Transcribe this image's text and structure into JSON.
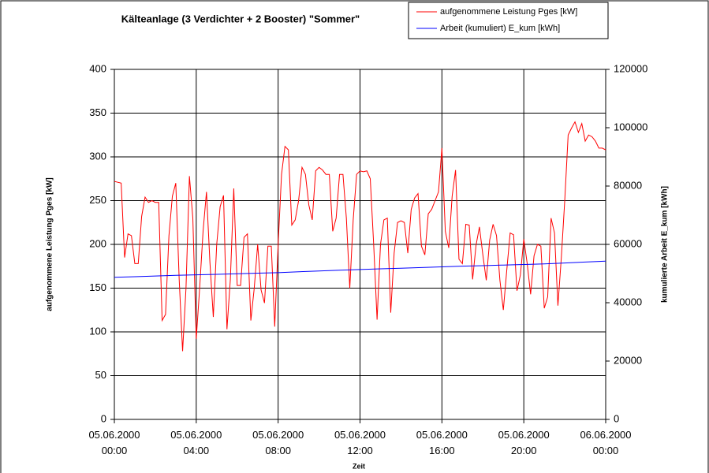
{
  "chart_data": {
    "type": "line",
    "title": "Kälteanlage (3 Verdichter + 2 Booster) \"Sommer\"",
    "xlabel": "Zeit",
    "ylabel": "aufgenommene Leistung Pges [kW]",
    "y2label": "kumulierte Arbeit E_kum [kWh]",
    "legend": "top right",
    "grid": true,
    "xlim": [
      "05.06.2000 00:00",
      "06.06.2000 00:00"
    ],
    "xticks": [
      "05.06.2000 00:00",
      "05.06.2000 04:00",
      "05.06.2000 08:00",
      "05.06.2000 12:00",
      "05.06.2000 16:00",
      "05.06.2000 20:00",
      "06.06.2000 00:00"
    ],
    "ylim": [
      0,
      400
    ],
    "yticks": [
      0,
      50,
      100,
      150,
      200,
      250,
      300,
      350,
      400
    ],
    "y2lim": [
      0,
      120000
    ],
    "y2ticks": [
      0,
      20000,
      40000,
      60000,
      80000,
      100000,
      120000
    ],
    "series": [
      {
        "name": "aufgenommene Leistung Pges [kW]",
        "color": "#ff0000",
        "x": [
          "05.06.2000 00:00",
          "05.06.2000 00:10",
          "05.06.2000 00:20",
          "05.06.2000 00:30",
          "05.06.2000 00:40",
          "05.06.2000 00:50",
          "05.06.2000 01:00",
          "05.06.2000 01:10",
          "05.06.2000 01:20",
          "05.06.2000 01:30",
          "05.06.2000 01:40",
          "05.06.2000 01:50",
          "05.06.2000 02:00",
          "05.06.2000 02:10",
          "05.06.2000 02:20",
          "05.06.2000 02:30",
          "05.06.2000 02:40",
          "05.06.2000 02:50",
          "05.06.2000 03:00",
          "05.06.2000 03:10",
          "05.06.2000 03:20",
          "05.06.2000 03:30",
          "05.06.2000 03:40",
          "05.06.2000 03:50",
          "05.06.2000 04:00",
          "05.06.2000 04:10",
          "05.06.2000 04:20",
          "05.06.2000 04:30",
          "05.06.2000 04:40",
          "05.06.2000 04:50",
          "05.06.2000 05:00",
          "05.06.2000 05:10",
          "05.06.2000 05:20",
          "05.06.2000 05:30",
          "05.06.2000 05:40",
          "05.06.2000 05:50",
          "05.06.2000 06:00",
          "05.06.2000 06:10",
          "05.06.2000 06:20",
          "05.06.2000 06:30",
          "05.06.2000 06:40",
          "05.06.2000 06:50",
          "05.06.2000 07:00",
          "05.06.2000 07:10",
          "05.06.2000 07:20",
          "05.06.2000 07:30",
          "05.06.2000 07:40",
          "05.06.2000 07:50",
          "05.06.2000 08:00",
          "05.06.2000 08:10",
          "05.06.2000 08:20",
          "05.06.2000 08:30",
          "05.06.2000 08:40",
          "05.06.2000 08:50",
          "05.06.2000 09:00",
          "05.06.2000 09:10",
          "05.06.2000 09:20",
          "05.06.2000 09:30",
          "05.06.2000 09:40",
          "05.06.2000 09:50",
          "05.06.2000 10:00",
          "05.06.2000 10:10",
          "05.06.2000 10:20",
          "05.06.2000 10:30",
          "05.06.2000 10:40",
          "05.06.2000 10:50",
          "05.06.2000 11:00",
          "05.06.2000 11:10",
          "05.06.2000 11:20",
          "05.06.2000 11:30",
          "05.06.2000 11:40",
          "05.06.2000 11:50",
          "05.06.2000 12:00",
          "05.06.2000 12:10",
          "05.06.2000 12:20",
          "05.06.2000 12:30",
          "05.06.2000 12:40",
          "05.06.2000 12:50",
          "05.06.2000 13:00",
          "05.06.2000 13:10",
          "05.06.2000 13:20",
          "05.06.2000 13:30",
          "05.06.2000 13:40",
          "05.06.2000 13:50",
          "05.06.2000 14:00",
          "05.06.2000 14:10",
          "05.06.2000 14:20",
          "05.06.2000 14:30",
          "05.06.2000 14:40",
          "05.06.2000 14:50",
          "05.06.2000 15:00",
          "05.06.2000 15:10",
          "05.06.2000 15:20",
          "05.06.2000 15:30",
          "05.06.2000 15:40",
          "05.06.2000 15:50",
          "05.06.2000 16:00",
          "05.06.2000 16:10",
          "05.06.2000 16:20",
          "05.06.2000 16:30",
          "05.06.2000 16:40",
          "05.06.2000 16:50",
          "05.06.2000 17:00",
          "05.06.2000 17:10",
          "05.06.2000 17:20",
          "05.06.2000 17:30",
          "05.06.2000 17:40",
          "05.06.2000 17:50",
          "05.06.2000 18:00",
          "05.06.2000 18:10",
          "05.06.2000 18:20",
          "05.06.2000 18:30",
          "05.06.2000 18:40",
          "05.06.2000 18:50",
          "05.06.2000 19:00",
          "05.06.2000 19:10",
          "05.06.2000 19:20",
          "05.06.2000 19:30",
          "05.06.2000 19:40",
          "05.06.2000 19:50",
          "05.06.2000 20:00",
          "05.06.2000 20:10",
          "05.06.2000 20:20",
          "05.06.2000 20:30",
          "05.06.2000 20:40",
          "05.06.2000 20:50",
          "05.06.2000 21:00",
          "05.06.2000 21:10",
          "05.06.2000 21:20",
          "05.06.2000 21:30",
          "05.06.2000 21:40",
          "05.06.2000 21:50",
          "05.06.2000 22:00",
          "05.06.2000 22:10",
          "05.06.2000 22:20",
          "05.06.2000 22:30",
          "05.06.2000 22:40",
          "05.06.2000 22:50",
          "05.06.2000 23:00",
          "05.06.2000 23:10",
          "05.06.2000 23:20",
          "05.06.2000 23:30",
          "05.06.2000 23:40",
          "05.06.2000 23:50",
          "06.06.2000 00:00"
        ],
        "values": [
          272,
          271,
          270,
          185,
          212,
          210,
          178,
          178,
          232,
          254,
          248,
          250,
          248,
          248,
          113,
          120,
          210,
          255,
          270,
          160,
          78,
          150,
          278,
          230,
          92,
          150,
          215,
          260,
          180,
          117,
          200,
          243,
          256,
          103,
          160,
          264,
          153,
          153,
          208,
          212,
          113,
          150,
          200,
          148,
          133,
          198,
          198,
          106,
          200,
          280,
          312,
          308,
          222,
          228,
          250,
          288,
          280,
          245,
          228,
          284,
          288,
          285,
          280,
          280,
          215,
          230,
          280,
          280,
          230,
          150,
          228,
          280,
          284,
          283,
          284,
          275,
          200,
          114,
          200,
          228,
          230,
          122,
          190,
          225,
          227,
          225,
          190,
          240,
          253,
          258,
          198,
          188,
          235,
          240,
          250,
          260,
          310,
          215,
          196,
          255,
          285,
          183,
          178,
          223,
          222,
          160,
          199,
          220,
          188,
          159,
          205,
          223,
          210,
          159,
          125,
          170,
          213,
          211,
          147,
          165,
          206,
          178,
          143,
          187,
          200,
          198,
          127,
          140,
          230,
          213,
          130,
          185,
          250,
          325,
          333,
          340,
          328,
          338,
          318,
          325,
          323,
          318,
          310,
          310,
          308
        ]
      },
      {
        "name": "Arbeit (kumuliert) E_kum [kWh]",
        "color": "#0000ff",
        "axis": "y2",
        "x": [
          "05.06.2000 00:00",
          "05.06.2000 01:00",
          "05.06.2000 02:00",
          "05.06.2000 03:00",
          "05.06.2000 04:00",
          "05.06.2000 05:00",
          "05.06.2000 06:00",
          "05.06.2000 07:00",
          "05.06.2000 08:00",
          "05.06.2000 09:00",
          "05.06.2000 10:00",
          "05.06.2000 11:00",
          "05.06.2000 12:00",
          "05.06.2000 13:00",
          "05.06.2000 14:00",
          "05.06.2000 15:00",
          "05.06.2000 16:00",
          "05.06.2000 17:00",
          "05.06.2000 18:00",
          "05.06.2000 19:00",
          "05.06.2000 20:00",
          "05.06.2000 21:00",
          "05.06.2000 22:00",
          "05.06.2000 23:00",
          "06.06.2000 00:00"
        ],
        "values": [
          48700,
          48930,
          49140,
          49380,
          49560,
          49740,
          49940,
          50120,
          50300,
          50600,
          50880,
          51160,
          51400,
          51620,
          51840,
          52060,
          52300,
          52520,
          52720,
          52920,
          53100,
          53320,
          53620,
          53940,
          54250
        ]
      }
    ]
  }
}
